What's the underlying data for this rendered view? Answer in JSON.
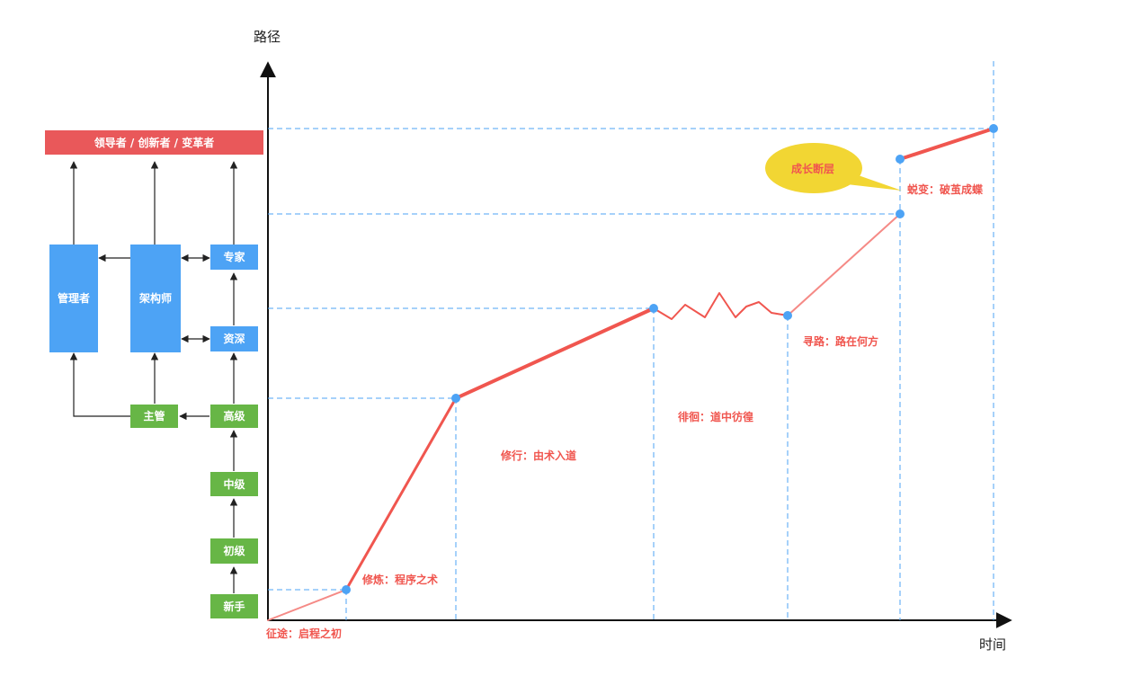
{
  "axes": {
    "y_label": "路径",
    "x_label": "时间"
  },
  "hierarchy": {
    "top": "领导者 / 创新者 / 变革者",
    "manager": "管理者",
    "architect": "架构师",
    "expert": "专家",
    "senior_expert": "资深",
    "supervisor": "主管",
    "senior": "高级",
    "middle": "中级",
    "junior": "初级",
    "newbie": "新手"
  },
  "stages": {
    "start": "征途：启程之初",
    "practice": "修炼：程序之术",
    "cultivate": "修行：由术入道",
    "wander": "徘徊：道中彷徨",
    "seek": "寻路：路在何方",
    "transform": "蜕变：破茧成蝶"
  },
  "callout": "成长断层",
  "colors": {
    "red": "#e9585a",
    "blue": "#4da3f5",
    "green": "#67b646",
    "curve": "#f0564f",
    "dash": "#4da3f5",
    "bubble": "#f2d633"
  }
}
